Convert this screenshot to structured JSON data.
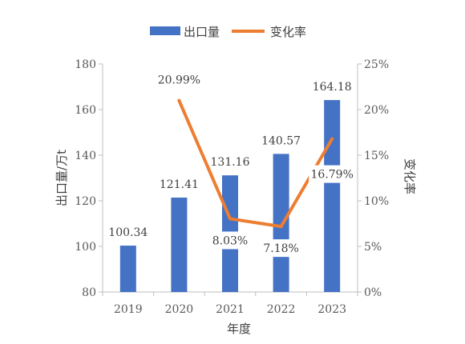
{
  "chart_data": {
    "type": "bar",
    "categories": [
      "2019",
      "2020",
      "2021",
      "2022",
      "2023"
    ],
    "xlabel": "年度",
    "series": [
      {
        "name": "出口量",
        "type": "bar",
        "axis": "left",
        "values": [
          100.34,
          121.41,
          131.16,
          140.57,
          164.18
        ],
        "labels": [
          "100.34",
          "121.41",
          "131.16",
          "140.57",
          "164.18"
        ],
        "color": "#4472C4"
      },
      {
        "name": "变化率",
        "type": "line",
        "axis": "right",
        "values": [
          null,
          20.99,
          8.03,
          7.18,
          16.79
        ],
        "labels": [
          "",
          "20.99%",
          "8.03%",
          "7.18%",
          "16.79%"
        ],
        "color": "#ED7D31"
      }
    ],
    "y_left": {
      "label": "出口量/万t",
      "min": 80,
      "max": 180,
      "ticks": [
        80,
        100,
        120,
        140,
        160,
        180
      ],
      "tick_labels": [
        "80",
        "100",
        "120",
        "140",
        "160",
        "180"
      ]
    },
    "y_right": {
      "label": "变化率",
      "min": 0,
      "max": 25,
      "ticks": [
        0,
        5,
        10,
        15,
        20,
        25
      ],
      "tick_labels": [
        "0%",
        "5%",
        "10%",
        "15%",
        "20%",
        "25%"
      ]
    },
    "legend": "top",
    "grid": false
  }
}
